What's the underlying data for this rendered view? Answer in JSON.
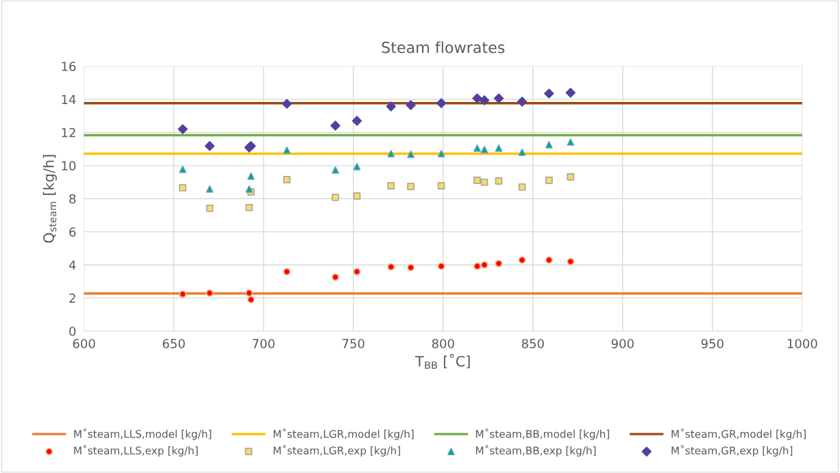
{
  "chart_data": {
    "type": "scatter",
    "title": "Steam flowrates",
    "xlabel": "T$_{BB}$ [˚C]",
    "ylabel": "Q$_{steam}$ [kg/h]",
    "xlim": [
      600,
      1000
    ],
    "xticks": [
      600,
      650,
      700,
      750,
      800,
      850,
      900,
      950,
      1000
    ],
    "ylim": [
      0,
      16
    ],
    "yticks": [
      0,
      2,
      4,
      6,
      8,
      10,
      12,
      14,
      16
    ],
    "grid": true,
    "legend": "bottom",
    "ref_lines": [
      {
        "axis": "y",
        "value": 2.27,
        "label": "M˚steam,LLS,model [kg/h]",
        "color": "#ed7d31"
      },
      {
        "axis": "y",
        "value": 10.72,
        "label": "M˚steam,LGR,model [kg/h]",
        "color": "#ffc000"
      },
      {
        "axis": "y",
        "value": 11.83,
        "label": "M˚steam,BB,model [kg/h]",
        "color": "#70ad47"
      },
      {
        "axis": "y",
        "value": 13.77,
        "label": "M˚steam,GR,model [kg/h]",
        "color": "#9e480e"
      }
    ],
    "x": [
      655,
      670,
      692,
      693,
      713,
      740,
      752,
      771,
      782,
      799,
      819,
      823,
      831,
      844,
      859,
      871
    ],
    "series": [
      {
        "name": "M˚steam,LLS,exp [kg/h]",
        "marker": "circle",
        "color": "#ff0000",
        "values": [
          2.23,
          2.3,
          2.3,
          1.9,
          3.59,
          3.26,
          3.59,
          3.88,
          3.84,
          3.92,
          3.92,
          4.0,
          4.08,
          4.29,
          4.29,
          4.2
        ]
      },
      {
        "name": "M˚steam,LGR,exp [kg/h]",
        "marker": "square",
        "color": "#ffd966",
        "values": [
          8.66,
          7.42,
          7.46,
          8.41,
          9.15,
          8.08,
          8.16,
          8.78,
          8.74,
          8.78,
          9.11,
          8.99,
          9.07,
          8.7,
          9.11,
          9.32
        ]
      },
      {
        "name": "M˚steam,BB,exp [kg/h]",
        "marker": "triangle",
        "color": "#00b050",
        "values": [
          9.77,
          8.58,
          8.58,
          9.36,
          10.93,
          9.73,
          9.94,
          10.72,
          10.68,
          10.72,
          11.05,
          10.97,
          11.05,
          10.8,
          11.26,
          11.42
        ]
      },
      {
        "name": "M˚steam,GR,exp [kg/h]",
        "marker": "diamond",
        "color": "#7030a0",
        "values": [
          12.2,
          11.18,
          11.09,
          11.18,
          13.73,
          12.41,
          12.7,
          13.57,
          13.65,
          13.77,
          14.06,
          13.94,
          14.06,
          13.86,
          14.35,
          14.4
        ]
      }
    ]
  }
}
